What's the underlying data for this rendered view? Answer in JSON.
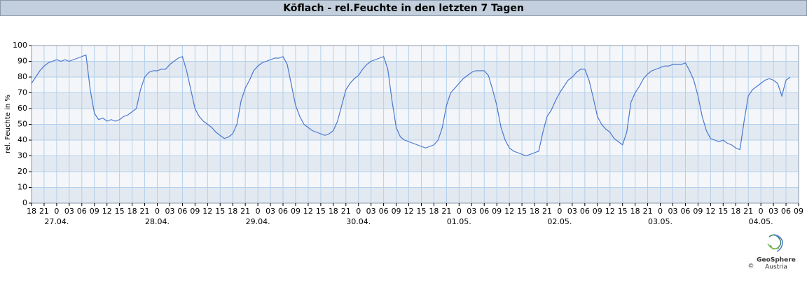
{
  "chart_data": {
    "type": "line",
    "title": "Köflach - rel.Feuchte in den letzten 7 Tagen",
    "y_label": "rel. Feuchte in %",
    "logo": {
      "copyright": "©",
      "name": "GeoSphere",
      "subname": "Austria"
    },
    "xlim": [
      0,
      183
    ],
    "ylim": [
      0,
      100
    ],
    "yticks": [
      0,
      10,
      20,
      30,
      40,
      50,
      60,
      70,
      80,
      90,
      100
    ],
    "xticks": [
      {
        "value": 0,
        "label": "18"
      },
      {
        "value": 3,
        "label": "21"
      },
      {
        "value": 6,
        "label": "0"
      },
      {
        "value": 9,
        "label": "03"
      },
      {
        "value": 12,
        "label": "06"
      },
      {
        "value": 15,
        "label": "09"
      },
      {
        "value": 18,
        "label": "12"
      },
      {
        "value": 21,
        "label": "15"
      },
      {
        "value": 24,
        "label": "18"
      },
      {
        "value": 27,
        "label": "21"
      },
      {
        "value": 30,
        "label": "0"
      },
      {
        "value": 33,
        "label": "03"
      },
      {
        "value": 36,
        "label": "06"
      },
      {
        "value": 39,
        "label": "09"
      },
      {
        "value": 42,
        "label": "12"
      },
      {
        "value": 45,
        "label": "15"
      },
      {
        "value": 48,
        "label": "18"
      },
      {
        "value": 51,
        "label": "21"
      },
      {
        "value": 54,
        "label": "0"
      },
      {
        "value": 57,
        "label": "03"
      },
      {
        "value": 60,
        "label": "06"
      },
      {
        "value": 63,
        "label": "09"
      },
      {
        "value": 66,
        "label": "12"
      },
      {
        "value": 69,
        "label": "15"
      },
      {
        "value": 72,
        "label": "18"
      },
      {
        "value": 75,
        "label": "21"
      },
      {
        "value": 78,
        "label": "0"
      },
      {
        "value": 81,
        "label": "03"
      },
      {
        "value": 84,
        "label": "06"
      },
      {
        "value": 87,
        "label": "09"
      },
      {
        "value": 90,
        "label": "12"
      },
      {
        "value": 93,
        "label": "15"
      },
      {
        "value": 96,
        "label": "18"
      },
      {
        "value": 99,
        "label": "21"
      },
      {
        "value": 102,
        "label": "0"
      },
      {
        "value": 105,
        "label": "03"
      },
      {
        "value": 108,
        "label": "06"
      },
      {
        "value": 111,
        "label": "09"
      },
      {
        "value": 114,
        "label": "12"
      },
      {
        "value": 117,
        "label": "15"
      },
      {
        "value": 120,
        "label": "18"
      },
      {
        "value": 123,
        "label": "21"
      },
      {
        "value": 126,
        "label": "0"
      },
      {
        "value": 129,
        "label": "03"
      },
      {
        "value": 132,
        "label": "06"
      },
      {
        "value": 135,
        "label": "09"
      },
      {
        "value": 138,
        "label": "12"
      },
      {
        "value": 141,
        "label": "15"
      },
      {
        "value": 144,
        "label": "18"
      },
      {
        "value": 147,
        "label": "21"
      },
      {
        "value": 150,
        "label": "0"
      },
      {
        "value": 153,
        "label": "03"
      },
      {
        "value": 156,
        "label": "06"
      },
      {
        "value": 159,
        "label": "09"
      },
      {
        "value": 162,
        "label": "12"
      },
      {
        "value": 165,
        "label": "15"
      },
      {
        "value": 168,
        "label": "18"
      },
      {
        "value": 171,
        "label": "21"
      },
      {
        "value": 174,
        "label": "0"
      },
      {
        "value": 177,
        "label": "03"
      },
      {
        "value": 180,
        "label": "06"
      },
      {
        "value": 183,
        "label": "09"
      }
    ],
    "xdates": [
      {
        "value": 6,
        "label": "27.04."
      },
      {
        "value": 30,
        "label": "28.04."
      },
      {
        "value": 54,
        "label": "29.04."
      },
      {
        "value": 78,
        "label": "30.04."
      },
      {
        "value": 102,
        "label": "01.05."
      },
      {
        "value": 126,
        "label": "02.05."
      },
      {
        "value": 150,
        "label": "03.05."
      },
      {
        "value": 174,
        "label": "04.05."
      }
    ],
    "grid": true,
    "x": [
      0,
      1,
      2,
      3,
      4,
      5,
      6,
      7,
      8,
      9,
      10,
      11,
      12,
      13,
      14,
      15,
      16,
      17,
      18,
      19,
      20,
      21,
      22,
      23,
      24,
      25,
      26,
      27,
      28,
      29,
      30,
      31,
      32,
      33,
      34,
      35,
      36,
      37,
      38,
      39,
      40,
      41,
      42,
      43,
      44,
      45,
      46,
      47,
      48,
      49,
      50,
      51,
      52,
      53,
      54,
      55,
      56,
      57,
      58,
      59,
      60,
      61,
      62,
      63,
      64,
      65,
      66,
      67,
      68,
      69,
      70,
      71,
      72,
      73,
      74,
      75,
      76,
      77,
      78,
      79,
      80,
      81,
      82,
      83,
      84,
      85,
      86,
      87,
      88,
      89,
      90,
      91,
      92,
      93,
      94,
      95,
      96,
      97,
      98,
      99,
      100,
      101,
      102,
      103,
      104,
      105,
      106,
      107,
      108,
      109,
      110,
      111,
      112,
      113,
      114,
      115,
      116,
      117,
      118,
      119,
      120,
      121,
      122,
      123,
      124,
      125,
      126,
      127,
      128,
      129,
      130,
      131,
      132,
      133,
      134,
      135,
      136,
      137,
      138,
      139,
      140,
      141,
      142,
      143,
      144,
      145,
      146,
      147,
      148,
      149,
      150,
      151,
      152,
      153,
      154,
      155,
      156,
      157,
      158,
      159,
      160,
      161,
      162,
      163,
      164,
      165,
      166,
      167,
      168,
      169,
      170,
      171,
      172,
      173,
      174,
      175,
      176,
      177,
      178,
      179,
      180,
      181
    ],
    "series": [
      {
        "color": "#4a78d0",
        "values": [
          76,
          80,
          84,
          87,
          89,
          90,
          91,
          90,
          91,
          90,
          91,
          92,
          93,
          94,
          72,
          57,
          53,
          54,
          52,
          53,
          52,
          53,
          55,
          56,
          58,
          60,
          72,
          80,
          83,
          84,
          84,
          85,
          85,
          88,
          90,
          92,
          93,
          84,
          72,
          60,
          55,
          52,
          50,
          48,
          45,
          43,
          41,
          42,
          44,
          50,
          65,
          73,
          78,
          84,
          87,
          89,
          90,
          91,
          92,
          92,
          93,
          88,
          75,
          62,
          55,
          50,
          48,
          46,
          45,
          44,
          43,
          44,
          46,
          52,
          62,
          72,
          76,
          79,
          81,
          85,
          88,
          90,
          91,
          92,
          93,
          85,
          65,
          48,
          42,
          40,
          39,
          38,
          37,
          36,
          35,
          36,
          37,
          40,
          48,
          62,
          70,
          73,
          76,
          79,
          81,
          83,
          84,
          84,
          84,
          81,
          72,
          62,
          48,
          40,
          35,
          33,
          32,
          31,
          30,
          31,
          32,
          33,
          45,
          55,
          59,
          65,
          70,
          74,
          78,
          80,
          83,
          85,
          85,
          78,
          67,
          55,
          50,
          47,
          45,
          41,
          39,
          37,
          45,
          64,
          70,
          74,
          79,
          82,
          84,
          85,
          86,
          87,
          87,
          88,
          88,
          88,
          89,
          84,
          78,
          68,
          55,
          46,
          41,
          40,
          39,
          40,
          38,
          37,
          35,
          34,
          52,
          68,
          72,
          74,
          76,
          78,
          79,
          78,
          76,
          68,
          78,
          80
        ]
      }
    ]
  }
}
